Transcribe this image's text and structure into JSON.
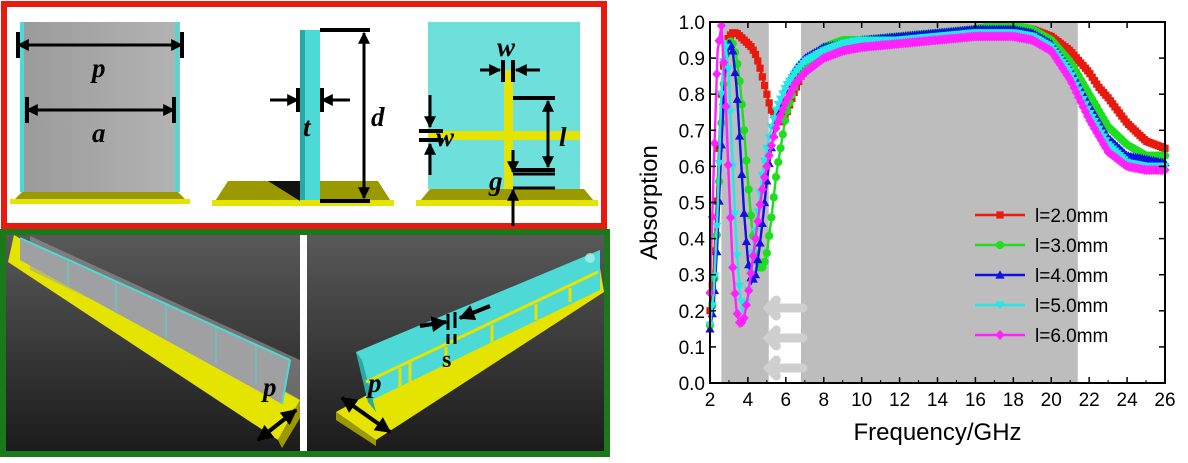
{
  "diagram": {
    "labels": {
      "p": "p",
      "a": "a",
      "t": "t",
      "d": "d",
      "w_top": "w",
      "w_side": "w",
      "l": "l",
      "g": "g",
      "p_bottom_left": "p",
      "p_bottom_right": "p",
      "s": "s"
    },
    "colors": {
      "top_frame": "#e8190f",
      "bottom_frame": "#1a7a1a",
      "cyan": "#4dd9d6",
      "yellow": "#e4e400",
      "gray_panel": "#aaaaaa"
    }
  },
  "chart_data": {
    "type": "line",
    "xlabel": "Frequency/GHz",
    "ylabel": "Absorption",
    "xlim": [
      2,
      26
    ],
    "ylim": [
      0.0,
      1.0
    ],
    "xticks": [
      2,
      4,
      6,
      8,
      10,
      12,
      14,
      16,
      18,
      20,
      22,
      24,
      26
    ],
    "yticks": [
      0.0,
      0.1,
      0.2,
      0.3,
      0.4,
      0.5,
      0.6,
      0.7,
      0.8,
      0.9,
      1.0
    ],
    "yticks_labels": [
      "0.0",
      "0.1",
      "0.2",
      "0.3",
      "0.4",
      "0.5",
      "0.6",
      "0.7",
      "0.8",
      "0.9",
      "1.0"
    ],
    "grid": false,
    "legend_position": "bottom-right",
    "shaded_bands": [
      [
        2.6,
        5.1
      ],
      [
        6.8,
        21.4
      ]
    ],
    "series": [
      {
        "name": "l=2.0mm",
        "color": "#e8190f",
        "marker": "square",
        "x": [
          2.0,
          2.2,
          2.4,
          2.6,
          2.8,
          3.0,
          3.2,
          3.4,
          3.6,
          3.8,
          4.0,
          4.2,
          4.4,
          4.6,
          4.8,
          5.0,
          5.2,
          5.4,
          5.6,
          5.8,
          6.0,
          6.4,
          6.8,
          7.5,
          8.0,
          9.0,
          10.0,
          12.0,
          14.0,
          16.0,
          17.0,
          18.0,
          19.0,
          20.0,
          21.0,
          22.0,
          22.5,
          23.0,
          24.0,
          25.0,
          26.0
        ],
        "y": [
          0.2,
          0.32,
          0.55,
          0.8,
          0.93,
          0.96,
          0.97,
          0.97,
          0.96,
          0.95,
          0.94,
          0.93,
          0.91,
          0.88,
          0.84,
          0.8,
          0.76,
          0.74,
          0.73,
          0.72,
          0.74,
          0.8,
          0.85,
          0.9,
          0.92,
          0.94,
          0.95,
          0.96,
          0.97,
          0.98,
          0.99,
          0.99,
          0.98,
          0.96,
          0.92,
          0.86,
          0.82,
          0.79,
          0.72,
          0.67,
          0.65
        ]
      },
      {
        "name": "l=3.0mm",
        "color": "#1fdd1f",
        "marker": "circle",
        "x": [
          2.0,
          2.2,
          2.4,
          2.6,
          2.8,
          3.0,
          3.2,
          3.4,
          3.6,
          3.8,
          4.0,
          4.2,
          4.4,
          4.6,
          4.8,
          5.0,
          5.2,
          5.5,
          6.0,
          6.5,
          7.0,
          8.0,
          9.0,
          10.0,
          12.0,
          14.0,
          16.0,
          17.0,
          18.0,
          19.0,
          20.0,
          21.0,
          22.0,
          23.0,
          24.0,
          25.0,
          26.0
        ],
        "y": [
          0.16,
          0.25,
          0.45,
          0.72,
          0.9,
          0.95,
          0.94,
          0.9,
          0.82,
          0.7,
          0.56,
          0.44,
          0.36,
          0.32,
          0.32,
          0.36,
          0.44,
          0.58,
          0.74,
          0.83,
          0.88,
          0.93,
          0.95,
          0.95,
          0.96,
          0.97,
          0.98,
          0.99,
          0.99,
          0.98,
          0.95,
          0.89,
          0.8,
          0.71,
          0.66,
          0.63,
          0.63
        ]
      },
      {
        "name": "l=4.0mm",
        "color": "#1010e0",
        "marker": "triangle",
        "x": [
          2.0,
          2.2,
          2.4,
          2.6,
          2.8,
          3.0,
          3.2,
          3.4,
          3.6,
          3.8,
          4.0,
          4.2,
          4.4,
          4.6,
          4.8,
          5.0,
          5.2,
          5.5,
          6.0,
          6.5,
          7.0,
          8.0,
          9.0,
          10.0,
          12.0,
          14.0,
          16.0,
          17.0,
          18.0,
          19.0,
          20.0,
          21.0,
          22.0,
          23.0,
          24.0,
          25.0,
          26.0
        ],
        "y": [
          0.15,
          0.22,
          0.4,
          0.66,
          0.86,
          0.95,
          0.92,
          0.82,
          0.65,
          0.47,
          0.34,
          0.28,
          0.3,
          0.37,
          0.46,
          0.56,
          0.64,
          0.73,
          0.82,
          0.87,
          0.9,
          0.93,
          0.94,
          0.95,
          0.96,
          0.97,
          0.98,
          0.98,
          0.98,
          0.97,
          0.94,
          0.87,
          0.77,
          0.68,
          0.63,
          0.62,
          0.61
        ]
      },
      {
        "name": "l=5.0mm",
        "color": "#22e8e8",
        "marker": "triangle-down",
        "x": [
          2.0,
          2.2,
          2.4,
          2.6,
          2.8,
          3.0,
          3.2,
          3.4,
          3.6,
          3.8,
          4.0,
          4.2,
          4.4,
          4.6,
          4.8,
          5.0,
          5.2,
          5.5,
          6.0,
          6.5,
          7.0,
          8.0,
          9.0,
          10.0,
          12.0,
          14.0,
          16.0,
          17.0,
          18.0,
          19.0,
          20.0,
          21.0,
          22.0,
          23.0,
          24.0,
          25.0,
          26.0
        ],
        "y": [
          0.16,
          0.25,
          0.48,
          0.8,
          0.95,
          0.85,
          0.6,
          0.38,
          0.24,
          0.2,
          0.24,
          0.32,
          0.42,
          0.51,
          0.59,
          0.65,
          0.7,
          0.76,
          0.82,
          0.86,
          0.89,
          0.92,
          0.94,
          0.95,
          0.95,
          0.96,
          0.97,
          0.97,
          0.97,
          0.96,
          0.93,
          0.86,
          0.75,
          0.66,
          0.61,
          0.6,
          0.6
        ]
      },
      {
        "name": "l=6.0mm",
        "color": "#ff22ff",
        "marker": "diamond",
        "x": [
          2.0,
          2.2,
          2.4,
          2.6,
          2.8,
          3.0,
          3.2,
          3.4,
          3.6,
          3.8,
          4.0,
          4.2,
          4.4,
          4.6,
          4.8,
          5.0,
          5.2,
          5.5,
          6.0,
          6.5,
          7.0,
          8.0,
          9.0,
          10.0,
          12.0,
          14.0,
          16.0,
          17.0,
          18.0,
          19.0,
          20.0,
          21.0,
          22.0,
          23.0,
          24.0,
          25.0,
          26.0
        ],
        "y": [
          0.25,
          0.6,
          0.92,
          0.99,
          0.82,
          0.55,
          0.32,
          0.2,
          0.16,
          0.18,
          0.24,
          0.32,
          0.4,
          0.48,
          0.55,
          0.6,
          0.65,
          0.71,
          0.78,
          0.83,
          0.86,
          0.9,
          0.92,
          0.93,
          0.94,
          0.95,
          0.96,
          0.96,
          0.96,
          0.95,
          0.92,
          0.84,
          0.73,
          0.64,
          0.6,
          0.59,
          0.59
        ]
      }
    ]
  }
}
